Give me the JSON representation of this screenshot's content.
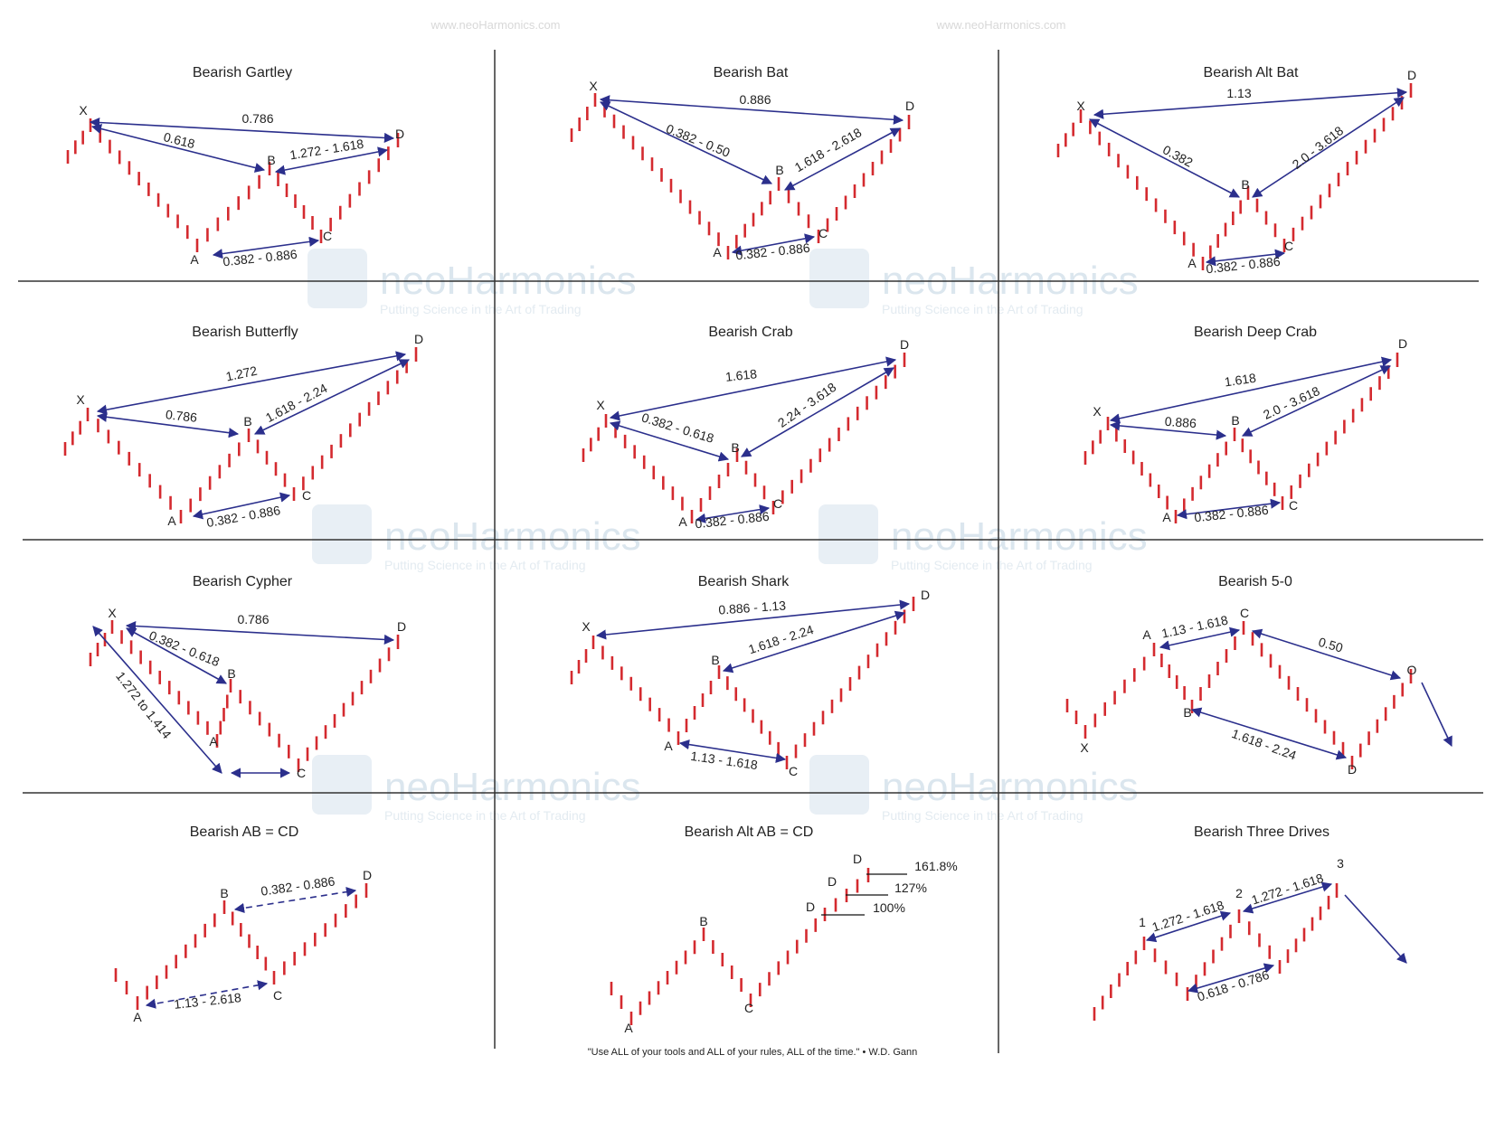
{
  "watermark_url": "www.neoHarmonics.com",
  "brand": "neoHarmonics",
  "brand_tagline": "Putting Science in the Art of Trading",
  "quote": "\"Use ALL of your tools and ALL of your rules, ALL of the time.\" • W.D. Gann",
  "colors": {
    "candle": "#d42a2f",
    "arrow": "#2b2f8c",
    "grid": "#333333",
    "text": "#222222",
    "brand": "#dbe6ee"
  },
  "patterns": [
    {
      "title": "Bearish Gartley",
      "points": [
        {
          "label": "X"
        },
        {
          "label": "A"
        },
        {
          "label": "B"
        },
        {
          "label": "C"
        },
        {
          "label": "D"
        }
      ],
      "ratios": [
        "0.786",
        "0.618",
        "1.272 - 1.618",
        "0.382 - 0.886"
      ]
    },
    {
      "title": "Bearish Bat",
      "points": [
        {
          "label": "X"
        },
        {
          "label": "A"
        },
        {
          "label": "B"
        },
        {
          "label": "C"
        },
        {
          "label": "D"
        }
      ],
      "ratios": [
        "0.886",
        "0.382 - 0.50",
        "1.618 - 2.618",
        "0.382 - 0.886"
      ]
    },
    {
      "title": "Bearish Alt Bat",
      "points": [
        {
          "label": "X"
        },
        {
          "label": "A"
        },
        {
          "label": "B"
        },
        {
          "label": "C"
        },
        {
          "label": "D"
        }
      ],
      "ratios": [
        "1.13",
        "0.382",
        "2.0 - 3.618",
        "0.382 - 0.886"
      ]
    },
    {
      "title": "Bearish Butterfly",
      "points": [
        {
          "label": "X"
        },
        {
          "label": "A"
        },
        {
          "label": "B"
        },
        {
          "label": "C"
        },
        {
          "label": "D"
        }
      ],
      "ratios": [
        "1.272",
        "0.786",
        "1.618 - 2.24",
        "0.382 - 0.886"
      ]
    },
    {
      "title": "Bearish Crab",
      "points": [
        {
          "label": "X"
        },
        {
          "label": "A"
        },
        {
          "label": "B"
        },
        {
          "label": "C"
        },
        {
          "label": "D"
        }
      ],
      "ratios": [
        "1.618",
        "0.382 - 0.618",
        "2.24 - 3.618",
        "0.382 - 0.886"
      ]
    },
    {
      "title": "Bearish Deep Crab",
      "points": [
        {
          "label": "X"
        },
        {
          "label": "A"
        },
        {
          "label": "B"
        },
        {
          "label": "C"
        },
        {
          "label": "D"
        }
      ],
      "ratios": [
        "1.618",
        "0.886",
        "2.0 - 3.618",
        "0.382 - 0.886"
      ]
    },
    {
      "title": "Bearish Cypher",
      "points": [
        {
          "label": "X"
        },
        {
          "label": "A"
        },
        {
          "label": "B"
        },
        {
          "label": "C"
        },
        {
          "label": "D"
        }
      ],
      "ratios": [
        "0.786",
        "0.382 - 0.618",
        "1.272 to 1.414"
      ]
    },
    {
      "title": "Bearish Shark",
      "points": [
        {
          "label": "X"
        },
        {
          "label": "A"
        },
        {
          "label": "B"
        },
        {
          "label": "C"
        },
        {
          "label": "D"
        }
      ],
      "ratios": [
        "0.886 - 1.13",
        "1.618 - 2.24",
        "1.13 - 1.618"
      ]
    },
    {
      "title": "Bearish 5-0",
      "points": [
        {
          "label": "X"
        },
        {
          "label": "A"
        },
        {
          "label": "B"
        },
        {
          "label": "C"
        },
        {
          "label": "D"
        },
        {
          "label": "O"
        }
      ],
      "ratios": [
        "1.13 - 1.618",
        "0.50",
        "1.618 - 2.24"
      ]
    },
    {
      "title": "Bearish AB = CD",
      "points": [
        {
          "label": "A"
        },
        {
          "label": "B"
        },
        {
          "label": "C"
        },
        {
          "label": "D"
        }
      ],
      "ratios": [
        "1.13 - 2.618",
        "0.382 - 0.886"
      ]
    },
    {
      "title": "Bearish Alt AB = CD",
      "points": [
        {
          "label": "A"
        },
        {
          "label": "B"
        },
        {
          "label": "C"
        },
        {
          "label": "D"
        },
        {
          "label": "D"
        },
        {
          "label": "D"
        }
      ],
      "ratios": [
        "161.8%",
        "127%",
        "100%"
      ]
    },
    {
      "title": "Bearish Three Drives",
      "points": [
        {
          "label": "1"
        },
        {
          "label": "2"
        },
        {
          "label": "3"
        }
      ],
      "ratios": [
        "1.272 - 1.618",
        "1.272 - 1.618",
        "0.618 - 0.786"
      ]
    }
  ]
}
